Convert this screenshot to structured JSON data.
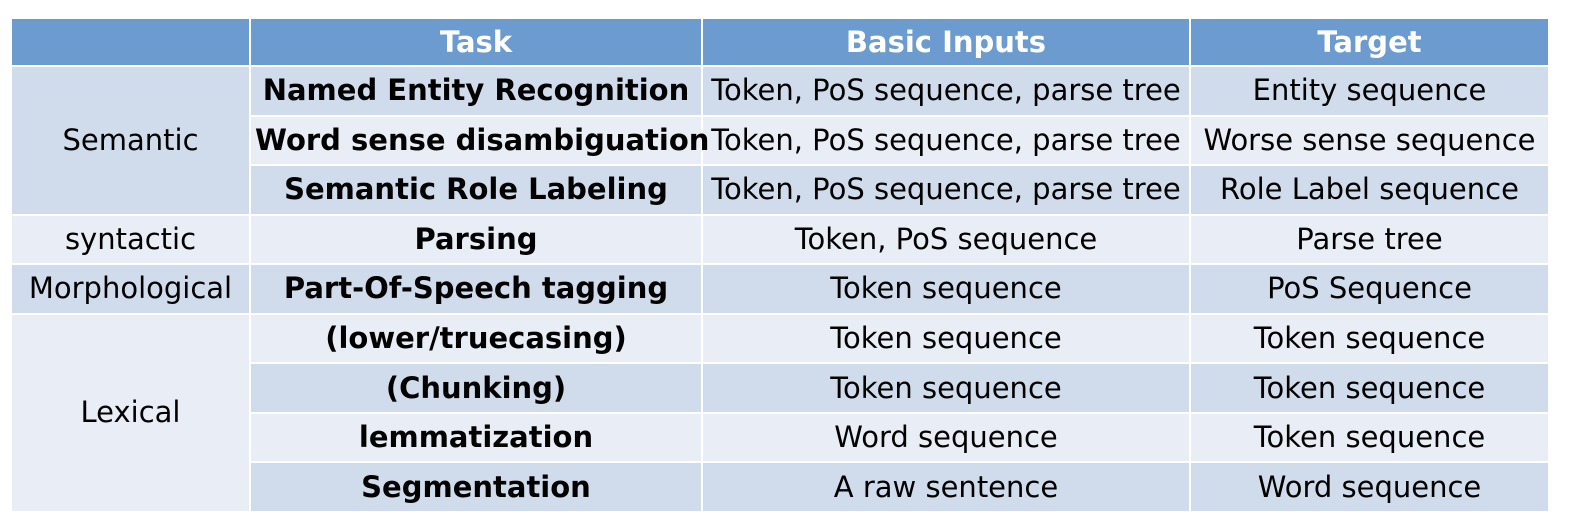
{
  "header": {
    "blank": "",
    "task": "Task",
    "basic_inputs": "Basic Inputs",
    "target": "Target"
  },
  "groups": [
    {
      "category": "Semantic",
      "rows": [
        {
          "task": "Named Entity Recognition",
          "inputs": "Token, PoS sequence, parse tree",
          "target": "Entity sequence"
        },
        {
          "task": "Word sense disambiguation",
          "inputs": "Token, PoS sequence, parse tree",
          "target": "Worse sense sequence"
        },
        {
          "task": "Semantic Role Labeling",
          "inputs": "Token, PoS sequence, parse tree",
          "target": "Role Label sequence"
        }
      ]
    },
    {
      "category": "syntactic",
      "rows": [
        {
          "task": "Parsing",
          "inputs": "Token, PoS sequence",
          "target": "Parse tree"
        }
      ]
    },
    {
      "category": "Morphological",
      "rows": [
        {
          "task": "Part-Of-Speech tagging",
          "inputs": "Token sequence",
          "target": "PoS Sequence"
        }
      ]
    },
    {
      "category": "Lexical",
      "rows": [
        {
          "task": "(lower/truecasing)",
          "inputs": "Token sequence",
          "target": "Token sequence"
        },
        {
          "task": "(Chunking)",
          "inputs": "Token sequence",
          "target": "Token sequence"
        },
        {
          "task": "lemmatization",
          "inputs": "Word sequence",
          "target": "Token sequence"
        },
        {
          "task": "Segmentation",
          "inputs": "A raw sentence",
          "target": "Word sequence"
        }
      ]
    }
  ],
  "colors": {
    "header_bg": "#6c9bd0",
    "row_dark": "#d0dcec",
    "row_light": "#e9eef6"
  }
}
